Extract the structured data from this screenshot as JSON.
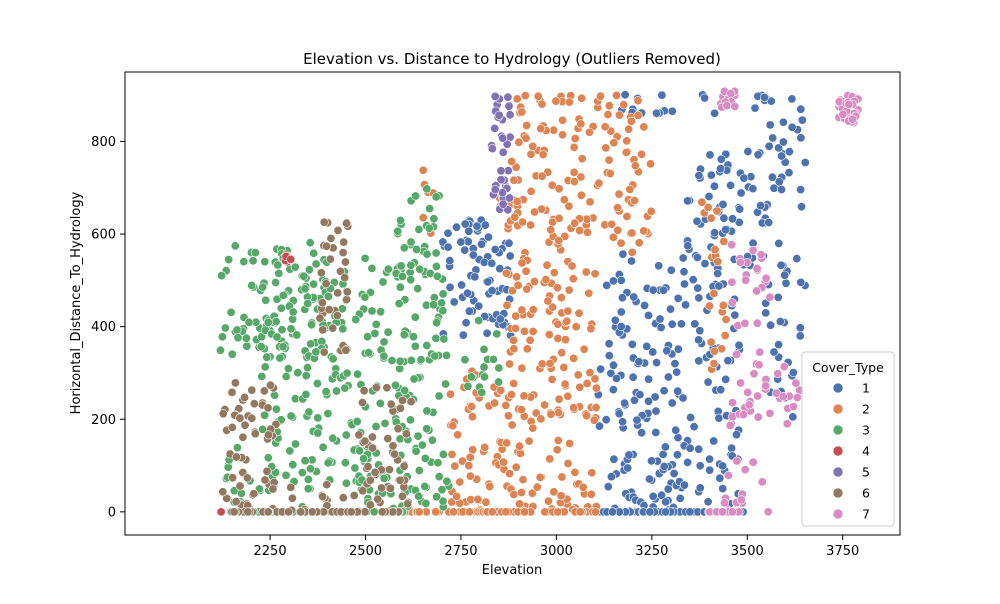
{
  "chart_data": {
    "type": "scatter",
    "title": "Elevation vs. Distance to Hydrology (Outliers Removed)",
    "xlabel": "Elevation",
    "ylabel": "Horizontal_Distance_To_Hydrology",
    "xlim": [
      1870,
      3900
    ],
    "ylim": [
      -50,
      950
    ],
    "xticks": [
      2250,
      2500,
      2750,
      3000,
      3250,
      3500,
      3750
    ],
    "yticks": [
      0,
      200,
      400,
      600,
      800
    ],
    "grid": false,
    "legend": {
      "title": "Cover_Type",
      "placement": "lower-right",
      "entries": [
        "1",
        "2",
        "3",
        "4",
        "5",
        "6",
        "7"
      ]
    },
    "series": [
      {
        "name": "1",
        "color": "#4c72b0",
        "regions": [
          {
            "x": [
              2700,
              2880
            ],
            "y": [
              380,
              640
            ],
            "density": 0.0016
          },
          {
            "x": [
              3110,
              3330
            ],
            "y": [
              0,
              560
            ],
            "density": 0.0011
          },
          {
            "x": [
              3330,
              3480
            ],
            "y": [
              0,
              780
            ],
            "density": 0.001
          },
          {
            "x": [
              3480,
              3660
            ],
            "y": [
              400,
              900
            ],
            "density": 0.0008
          },
          {
            "x": [
              3560,
              3640
            ],
            "y": [
              200,
              400
            ],
            "density": 0.0008
          },
          {
            "x": [
              3120,
              3420
            ],
            "y": [
              860,
              905
            ],
            "density": 0.001
          },
          {
            "x": [
              3100,
              3500
            ],
            "y": [
              0,
              0
            ],
            "density": 0.12
          }
        ]
      },
      {
        "name": "2",
        "color": "#dd8452",
        "regions": [
          {
            "x": [
              2720,
              2860
            ],
            "y": [
              0,
              330
            ],
            "density": 0.0011
          },
          {
            "x": [
              2860,
              3110
            ],
            "y": [
              0,
              900
            ],
            "density": 0.0011
          },
          {
            "x": [
              3110,
              3250
            ],
            "y": [
              560,
              900
            ],
            "density": 0.0011
          },
          {
            "x": [
              2820,
              2900
            ],
            "y": [
              620,
              720
            ],
            "density": 0.0012
          },
          {
            "x": [
              3380,
              3450
            ],
            "y": [
              300,
              680
            ],
            "density": 0.0008
          },
          {
            "x": [
              2640,
              2680
            ],
            "y": [
              600,
              750
            ],
            "density": 0.001
          },
          {
            "x": [
              2600,
              3110
            ],
            "y": [
              0,
              0
            ],
            "density": 0.12
          }
        ]
      },
      {
        "name": "3",
        "color": "#55a868",
        "regions": [
          {
            "x": [
              2120,
              2400
            ],
            "y": [
              330,
              590
            ],
            "density": 0.0012
          },
          {
            "x": [
              2220,
              2720
            ],
            "y": [
              0,
              560
            ],
            "density": 0.0011
          },
          {
            "x": [
              2580,
              2700
            ],
            "y": [
              500,
              700
            ],
            "density": 0.0012
          },
          {
            "x": [
              2760,
              2850
            ],
            "y": [
              250,
              430
            ],
            "density": 0.001
          },
          {
            "x": [
              2120,
              2200
            ],
            "y": [
              0,
              150
            ],
            "density": 0.001
          },
          {
            "x": [
              2150,
              2620
            ],
            "y": [
              0,
              0
            ],
            "density": 0.1
          }
        ]
      },
      {
        "name": "4",
        "color": "#c44e52",
        "regions": [
          {
            "x": [
              2290,
              2310
            ],
            "y": [
              540,
              555
            ],
            "density": 0.02
          },
          {
            "x": [
              2120,
              2360
            ],
            "y": [
              0,
              0
            ],
            "density": 0.05
          }
        ]
      },
      {
        "name": "5",
        "color": "#8172b3",
        "regions": [
          {
            "x": [
              2830,
              2880
            ],
            "y": [
              650,
              900
            ],
            "density": 0.003
          }
        ]
      },
      {
        "name": "6",
        "color": "#937860",
        "regions": [
          {
            "x": [
              2120,
              2200
            ],
            "y": [
              0,
              300
            ],
            "density": 0.0014
          },
          {
            "x": [
              2200,
              2270
            ],
            "y": [
              0,
              290
            ],
            "density": 0.0012
          },
          {
            "x": [
              2380,
              2460
            ],
            "y": [
              330,
              650
            ],
            "density": 0.0014
          },
          {
            "x": [
              2480,
              2620
            ],
            "y": [
              0,
              280
            ],
            "density": 0.0012
          },
          {
            "x": [
              2300,
              2480
            ],
            "y": [
              0,
              60
            ],
            "density": 0.0012
          },
          {
            "x": [
              2130,
              2590
            ],
            "y": [
              0,
              0
            ],
            "density": 0.1
          }
        ]
      },
      {
        "name": "7",
        "color": "#da8bc3",
        "regions": [
          {
            "x": [
              3450,
              3560
            ],
            "y": [
              180,
              580
            ],
            "density": 0.001
          },
          {
            "x": [
              3570,
              3640
            ],
            "y": [
              190,
              330
            ],
            "density": 0.0012
          },
          {
            "x": [
              3420,
              3560
            ],
            "y": [
              0,
              120
            ],
            "density": 0.0008
          },
          {
            "x": [
              3430,
              3470
            ],
            "y": [
              870,
              910
            ],
            "density": 0.008
          },
          {
            "x": [
              3740,
              3790
            ],
            "y": [
              840,
              900
            ],
            "density": 0.012
          },
          {
            "x": [
              3400,
              3480
            ],
            "y": [
              0,
              0
            ],
            "density": 0.12
          }
        ]
      }
    ]
  }
}
